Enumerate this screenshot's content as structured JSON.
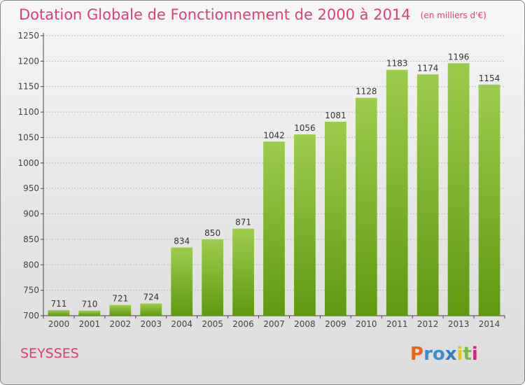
{
  "chart_data": {
    "type": "bar",
    "title": "Dotation Globale de Fonctionnement de 2000 à 2014",
    "unit_note": "(en milliers d'€)",
    "categories": [
      "2000",
      "2001",
      "2002",
      "2003",
      "2004",
      "2005",
      "2006",
      "2007",
      "2008",
      "2009",
      "2010",
      "2011",
      "2012",
      "2013",
      "2014"
    ],
    "values": [
      711,
      710,
      721,
      724,
      834,
      850,
      871,
      1042,
      1056,
      1081,
      1128,
      1183,
      1174,
      1196,
      1154
    ],
    "ylim": [
      700,
      1250
    ],
    "yticks": [
      700,
      750,
      800,
      850,
      900,
      950,
      1000,
      1050,
      1100,
      1150,
      1200,
      1250
    ],
    "grid": true,
    "bar_color_top": "#9ccc4c",
    "bar_color_bottom": "#5f9a12"
  },
  "footer": {
    "commune": "SEYSSES",
    "logo": "Proxiti"
  },
  "colors": {
    "title": "#e0406e",
    "axis": "#444444",
    "grid": "#bfbfbf"
  }
}
